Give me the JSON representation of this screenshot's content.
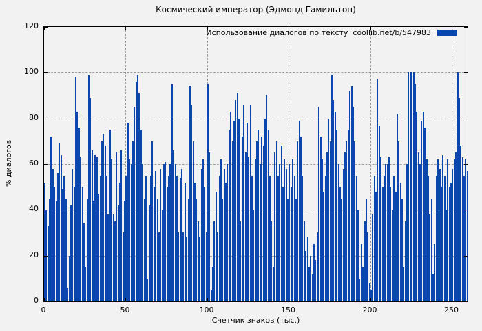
{
  "chart_data": {
    "type": "bar",
    "title": "Космический император (Эдмонд Гамильтон)",
    "legend_label": "Использование диалогов по тексту  coollib.net/b/547983",
    "legend_position": "top-right",
    "xlabel": "Счетчик знаков (тыс.)",
    "ylabel": "% диалогов",
    "xlim": [
      0,
      259.5
    ],
    "ylim": [
      0,
      120
    ],
    "xticks": [
      0,
      50,
      100,
      150,
      200,
      250
    ],
    "yticks": [
      0,
      20,
      40,
      60,
      80,
      100,
      120
    ],
    "grid": true,
    "x_start": 0,
    "x_step": 1,
    "values": [
      52,
      40,
      33,
      45,
      72,
      58,
      50,
      44,
      56,
      69,
      64,
      49,
      55,
      45,
      6,
      20,
      42,
      58,
      50,
      98,
      83,
      76,
      63,
      50,
      34,
      15,
      45,
      99,
      89,
      66,
      44,
      64,
      63,
      47,
      55,
      70,
      73,
      68,
      55,
      38,
      75,
      62,
      38,
      35,
      65,
      42,
      52,
      66,
      30,
      44,
      55,
      78,
      62,
      60,
      70,
      85,
      96,
      99,
      91,
      75,
      60,
      45,
      55,
      10,
      42,
      55,
      70,
      50,
      57,
      45,
      30,
      58,
      40,
      60,
      61,
      50,
      55,
      60,
      95,
      66,
      60,
      55,
      30,
      54,
      58,
      30,
      52,
      28,
      45,
      94,
      86,
      70,
      52,
      45,
      35,
      28,
      58,
      62,
      50,
      30,
      95,
      65,
      5,
      15,
      35,
      48,
      30,
      55,
      62,
      45,
      58,
      52,
      60,
      75,
      83,
      70,
      79,
      88,
      91,
      80,
      35,
      72,
      86,
      65,
      78,
      63,
      86,
      55,
      40,
      62,
      70,
      75,
      60,
      72,
      68,
      80,
      90,
      75,
      55,
      35,
      15,
      65,
      70,
      55,
      60,
      68,
      50,
      62,
      58,
      45,
      60,
      50,
      62,
      55,
      45,
      70,
      79,
      72,
      55,
      35,
      22,
      28,
      15,
      20,
      12,
      25,
      18,
      30,
      85,
      72,
      62,
      48,
      55,
      65,
      80,
      70,
      99,
      88,
      83,
      75,
      60,
      50,
      45,
      58,
      65,
      70,
      75,
      92,
      94,
      85,
      70,
      55,
      40,
      10,
      25,
      15,
      35,
      45,
      30,
      8,
      5,
      38,
      55,
      48,
      97,
      77,
      63,
      50,
      55,
      60,
      60,
      63,
      50,
      40,
      55,
      48,
      82,
      70,
      52,
      45,
      15,
      35,
      60,
      100,
      100,
      100,
      100,
      95,
      83,
      65,
      60,
      79,
      83,
      76,
      62,
      55,
      38,
      45,
      12,
      25,
      55,
      62,
      58,
      50,
      64,
      55,
      40,
      62,
      50,
      52,
      58,
      62,
      65,
      100,
      89,
      68,
      63,
      55,
      62,
      57
    ]
  },
  "colors": {
    "bar": "#0a46ad",
    "background": "#f2f2f2",
    "grid": "#9a9a9a",
    "border": "#000000",
    "text": "#000000"
  }
}
